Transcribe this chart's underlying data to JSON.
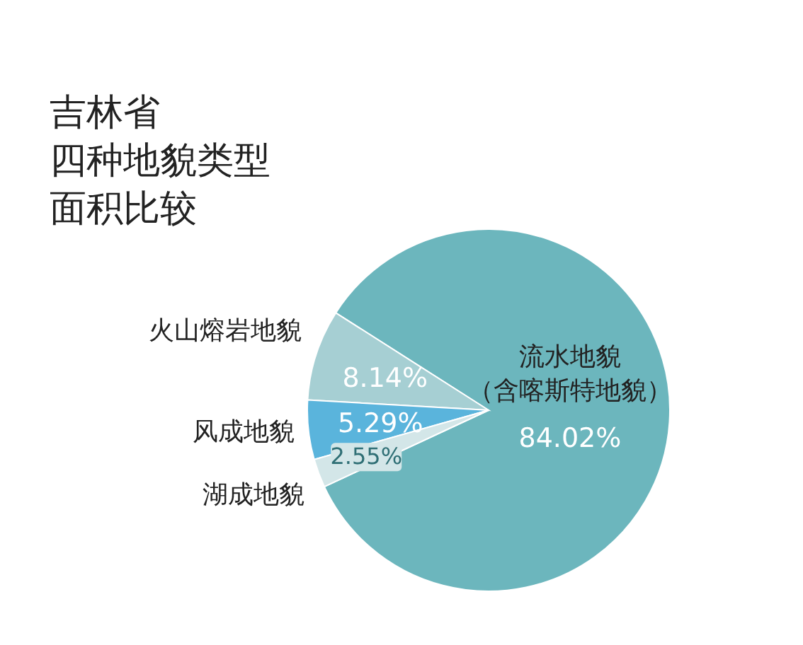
{
  "chart_data": {
    "type": "pie",
    "title": "吉林省",
    "subtitle": "四种地貌类型面积比较",
    "categories": [
      "流水地貌（含喀斯特地貌）",
      "火山熔岩地貌",
      "风成地貌",
      "湖成地貌"
    ],
    "values": [
      84.02,
      8.14,
      5.29,
      2.55
    ],
    "value_labels": [
      "84.02%",
      "8.14%",
      "5.29%",
      "2.55%"
    ],
    "colors": [
      "#6cb6bd",
      "#a6cfd3",
      "#5ab4dc",
      "#d3e6e8"
    ],
    "legend": false
  }
}
